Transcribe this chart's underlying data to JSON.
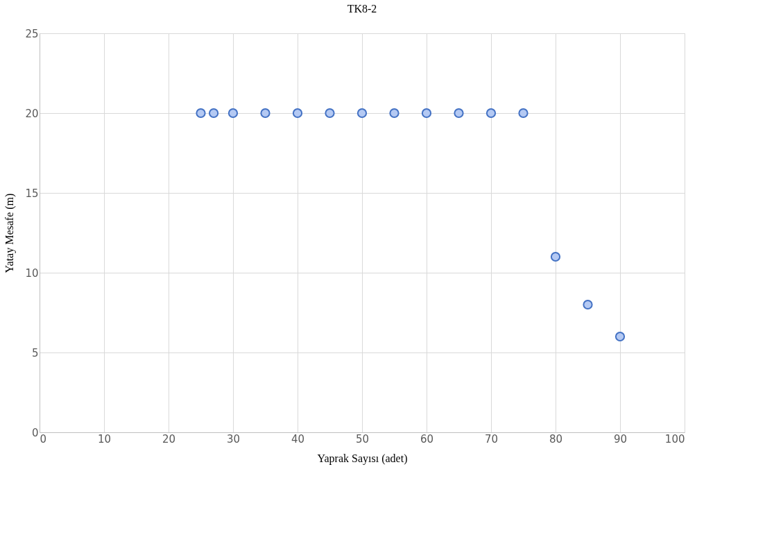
{
  "chart_data": {
    "type": "scatter",
    "title": "TK8-2",
    "xlabel": "Yaprak Sayısı (adet)",
    "ylabel": "Yatay Mesafe (m)",
    "x": [
      25,
      27,
      30,
      35,
      40,
      45,
      50,
      55,
      60,
      65,
      70,
      75,
      80,
      85,
      90
    ],
    "series": [
      {
        "color": "#4472c4",
        "values": [
          20,
          20,
          20,
          20,
          20,
          20,
          20,
          20,
          20,
          20,
          20,
          20,
          11,
          8,
          6
        ]
      }
    ],
    "xlim": [
      0,
      100
    ],
    "xticks": [
      0,
      10,
      20,
      30,
      40,
      50,
      60,
      70,
      80,
      90,
      100
    ],
    "ylim": [
      0,
      25
    ],
    "yticks": [
      0,
      5,
      10,
      15,
      20,
      25
    ],
    "grid": true,
    "marker": "circle",
    "legend": false
  }
}
